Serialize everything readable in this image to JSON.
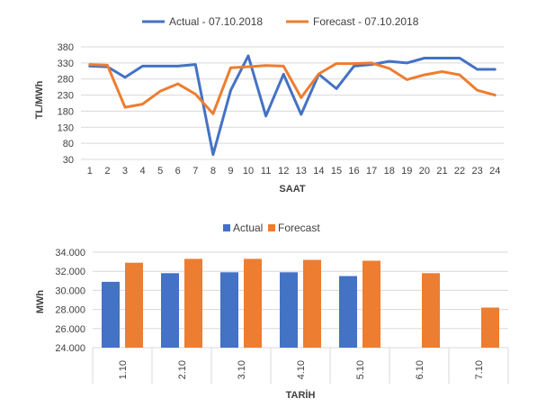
{
  "chart_data": [
    {
      "type": "line",
      "xlabel": "SAAT",
      "ylabel": "TL/MWh",
      "ylim": [
        30,
        380
      ],
      "yticks": [
        30,
        80,
        130,
        180,
        230,
        280,
        330,
        380
      ],
      "grid": true,
      "legend_position": "top",
      "x": [
        "1",
        "2",
        "3",
        "4",
        "5",
        "6",
        "7",
        "8",
        "9",
        "10",
        "11",
        "12",
        "13",
        "14",
        "15",
        "16",
        "17",
        "18",
        "19",
        "20",
        "21",
        "22",
        "23",
        "24"
      ],
      "series": [
        {
          "name": "Actual - 07.10.2018",
          "color": "#4472C4",
          "values": [
            320,
            318,
            285,
            320,
            320,
            320,
            325,
            45,
            245,
            352,
            165,
            295,
            170,
            295,
            250,
            320,
            325,
            335,
            330,
            345,
            345,
            345,
            310,
            310
          ]
        },
        {
          "name": "Forecast - 07.10.2018",
          "color": "#ED7D31",
          "values": [
            325,
            323,
            192,
            202,
            242,
            265,
            233,
            172,
            315,
            318,
            322,
            320,
            222,
            296,
            328,
            328,
            330,
            313,
            278,
            293,
            303,
            293,
            245,
            230
          ]
        }
      ]
    },
    {
      "type": "bar",
      "xlabel": "TARİH",
      "ylabel": "MWh",
      "ylim": [
        24000,
        34000
      ],
      "yticks": [
        "24.000",
        "26.000",
        "28.000",
        "30.000",
        "32.000",
        "34.000"
      ],
      "ytick_values": [
        24000,
        26000,
        28000,
        30000,
        32000,
        34000
      ],
      "grid": true,
      "legend_position": "top",
      "categories": [
        "1.10",
        "2.10",
        "3.10",
        "4.10",
        "5.10",
        "6.10",
        "7.10"
      ],
      "series": [
        {
          "name": "Actual",
          "color": "#4472C4",
          "values": [
            30900,
            31800,
            31900,
            31900,
            31500,
            null,
            null
          ]
        },
        {
          "name": "Forecast",
          "color": "#ED7D31",
          "values": [
            32900,
            33300,
            33300,
            33200,
            33100,
            31800,
            28200
          ]
        }
      ]
    }
  ]
}
